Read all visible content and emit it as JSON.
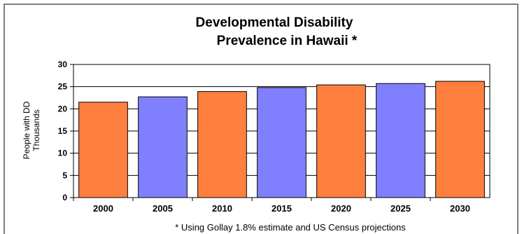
{
  "chart_data": {
    "type": "bar",
    "title_line1": "Developmental Disability",
    "title_line2": "Prevalence in Hawaii *",
    "ylabel_line1": "People with DD",
    "ylabel_line2": "Thousands",
    "xlabel": "",
    "categories": [
      "2000",
      "2005",
      "2010",
      "2015",
      "2020",
      "2025",
      "2030"
    ],
    "values": [
      21.5,
      22.7,
      23.9,
      24.8,
      25.4,
      25.7,
      26.2
    ],
    "bar_colors": [
      "#ff7f3f",
      "#8080ff",
      "#ff7f3f",
      "#8080ff",
      "#ff7f3f",
      "#8080ff",
      "#ff7f3f"
    ],
    "ylim": [
      0,
      30
    ],
    "yticks": [
      "0",
      "5",
      "10",
      "15",
      "20",
      "25",
      "30"
    ],
    "grid": true,
    "legend": "none",
    "footnote": "* Using Gollay 1.8% estimate and US Census projections"
  }
}
